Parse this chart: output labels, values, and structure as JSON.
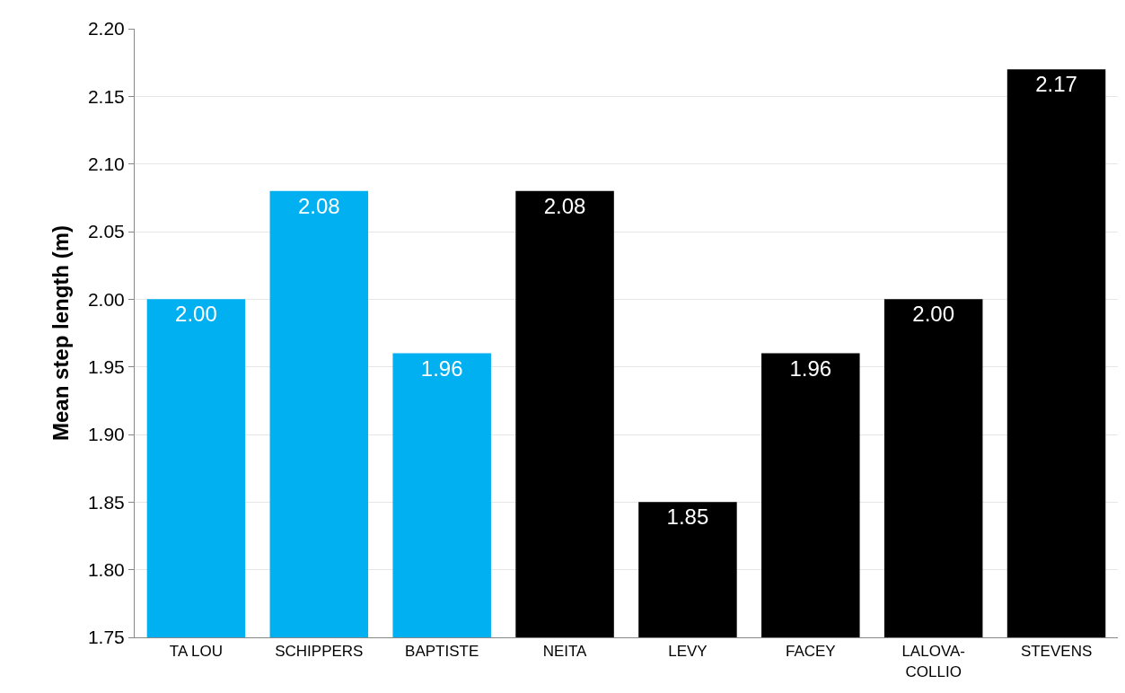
{
  "chart_data": {
    "type": "bar",
    "ylabel": "Mean step length (m)",
    "categories": [
      "TA LOU",
      "SCHIPPERS",
      "BAPTISTE",
      "NEITA",
      "LEVY",
      "FACEY",
      "LALOVA-COLLIO",
      "STEVENS"
    ],
    "values": [
      2.0,
      2.08,
      1.96,
      2.08,
      1.85,
      1.96,
      2.0,
      2.17
    ],
    "value_labels": [
      "2.00",
      "2.08",
      "1.96",
      "2.08",
      "1.85",
      "1.96",
      "2.00",
      "2.17"
    ],
    "colors": [
      "#00b0f0",
      "#00b0f0",
      "#00b0f0",
      "#000000",
      "#000000",
      "#000000",
      "#000000",
      "#000000"
    ],
    "ylim": [
      1.75,
      2.2
    ],
    "yticks": [
      {
        "value": 1.75,
        "label": "1.75"
      },
      {
        "value": 1.8,
        "label": "1.80"
      },
      {
        "value": 1.85,
        "label": "1.85"
      },
      {
        "value": 1.9,
        "label": "1.90"
      },
      {
        "value": 1.95,
        "label": "1.95"
      },
      {
        "value": 2.0,
        "label": "2.00"
      },
      {
        "value": 2.05,
        "label": "2.05"
      },
      {
        "value": 2.1,
        "label": "2.10"
      },
      {
        "value": 2.15,
        "label": "2.15"
      },
      {
        "value": 2.2,
        "label": "2.20"
      }
    ],
    "grid": "y"
  }
}
